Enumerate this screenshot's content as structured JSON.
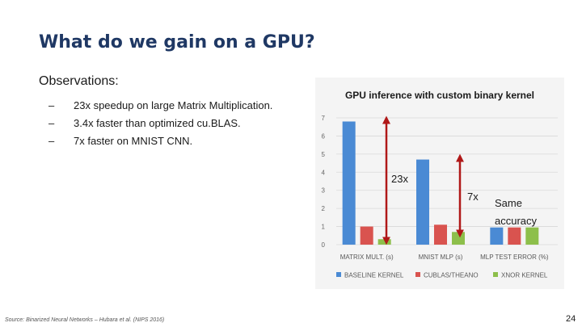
{
  "slide": {
    "title": "What do we gain on a GPU?",
    "observations_heading": "Observations:",
    "bullets": [
      {
        "marker": "–",
        "text": "23x speedup on large Matrix Multiplication."
      },
      {
        "marker": "–",
        "text": "3.4x faster than optimized cu.BLAS."
      },
      {
        "marker": "–",
        "text": "7x faster on MNIST CNN."
      }
    ],
    "source": "Source: Binarized Neural Networks – Hubara et al. (NIPS 2016)",
    "page_number": "24"
  },
  "colors": {
    "title": "#1f3864",
    "baseline": "#4a8ad4",
    "cublas": "#d9534f",
    "xnor": "#8dbf4b",
    "arrow": "#b01818"
  },
  "chart_data": {
    "type": "bar",
    "title": "GPU inference with custom binary kernel",
    "categories": [
      "MATRIX MULT. (s)",
      "MNIST MLP (s)",
      "MLP TEST ERROR (%)"
    ],
    "series": [
      {
        "name": "BASELINE KERNEL",
        "values": [
          6.8,
          4.7,
          0.95
        ]
      },
      {
        "name": "CUBLAS/THEANO",
        "values": [
          1.0,
          1.1,
          0.95
        ]
      },
      {
        "name": "XNOR KERNEL",
        "values": [
          0.3,
          0.7,
          0.95
        ]
      }
    ],
    "ylim": [
      0,
      7
    ],
    "yticks": [
      0,
      1,
      2,
      3,
      4,
      5,
      6,
      7
    ],
    "grid": true,
    "legend": "bottom",
    "annotations": [
      {
        "text": "23x",
        "category": 0,
        "from": 0.3,
        "to": 6.8
      },
      {
        "text": "7x",
        "category": 1,
        "from": 0.7,
        "to": 4.7
      },
      {
        "text": "Same accuracy",
        "category": 2
      }
    ]
  }
}
